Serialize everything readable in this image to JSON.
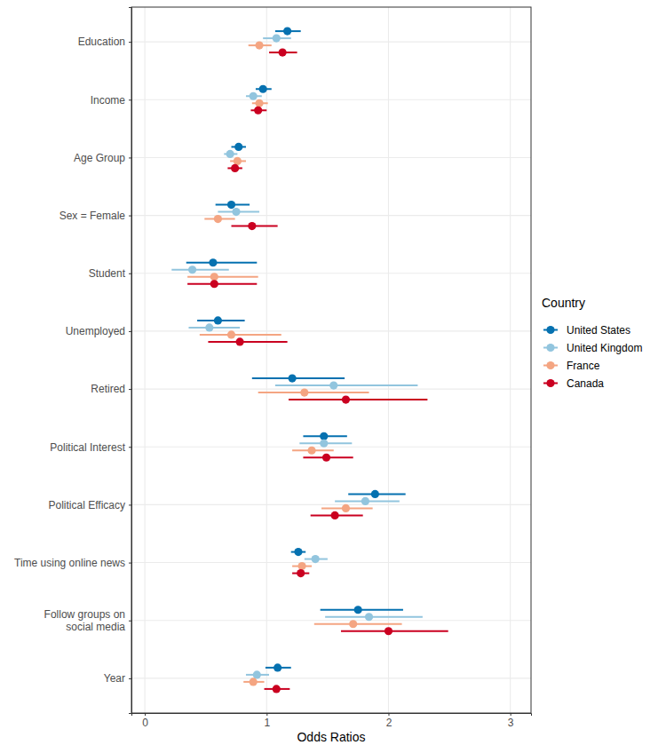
{
  "chart_data": {
    "type": "dot_errorbar",
    "orientation": "horizontal",
    "x_label": "Odds Ratios",
    "legend_title": "Country",
    "legend": "right",
    "grid": true,
    "xlim": [
      -0.11,
      3.17
    ],
    "xticks": [
      0,
      1,
      2,
      3
    ],
    "categories": [
      "Education",
      "Income",
      "Age Group",
      "Sex = Female",
      "Student",
      "Unemployed",
      "Retired",
      "Political Interest",
      "Political Efficacy",
      "Time using online news",
      "Follow groups on\nsocial media",
      "Year"
    ],
    "series": [
      {
        "name": "United States",
        "color": "#0571b0",
        "marker": "circle",
        "values": [
          1.17,
          0.97,
          0.77,
          0.71,
          0.56,
          0.6,
          1.21,
          1.47,
          1.89,
          1.26,
          1.75,
          1.09
        ],
        "lower": [
          1.07,
          0.91,
          0.71,
          0.58,
          0.34,
          0.43,
          0.88,
          1.3,
          1.67,
          1.2,
          1.44,
          0.99
        ],
        "upper": [
          1.28,
          1.04,
          0.83,
          0.86,
          0.92,
          0.82,
          1.64,
          1.66,
          2.14,
          1.32,
          2.12,
          1.2
        ]
      },
      {
        "name": "United Kingdom",
        "color": "#92c5de",
        "marker": "circle",
        "values": [
          1.08,
          0.89,
          0.7,
          0.75,
          0.39,
          0.53,
          1.55,
          1.47,
          1.81,
          1.4,
          1.84,
          0.92
        ],
        "lower": [
          0.97,
          0.83,
          0.65,
          0.6,
          0.22,
          0.36,
          1.07,
          1.27,
          1.56,
          1.31,
          1.48,
          0.83
        ],
        "upper": [
          1.2,
          0.96,
          0.76,
          0.94,
          0.69,
          0.78,
          2.24,
          1.7,
          2.09,
          1.5,
          2.28,
          1.02
        ]
      },
      {
        "name": "France",
        "color": "#f4a582",
        "marker": "circle",
        "values": [
          0.94,
          0.94,
          0.76,
          0.6,
          0.57,
          0.71,
          1.31,
          1.37,
          1.65,
          1.29,
          1.71,
          0.89
        ],
        "lower": [
          0.85,
          0.88,
          0.7,
          0.49,
          0.35,
          0.45,
          0.93,
          1.21,
          1.45,
          1.21,
          1.39,
          0.81
        ],
        "upper": [
          1.04,
          1.01,
          0.83,
          0.74,
          0.93,
          1.12,
          1.84,
          1.55,
          1.87,
          1.37,
          2.11,
          0.98
        ]
      },
      {
        "name": "Canada",
        "color": "#ca0020",
        "marker": "circle",
        "values": [
          1.13,
          0.93,
          0.74,
          0.88,
          0.57,
          0.78,
          1.65,
          1.49,
          1.56,
          1.28,
          2.0,
          1.08
        ],
        "lower": [
          1.02,
          0.87,
          0.68,
          0.71,
          0.35,
          0.52,
          1.18,
          1.3,
          1.36,
          1.21,
          1.61,
          0.98
        ],
        "upper": [
          1.25,
          1.0,
          0.8,
          1.09,
          0.92,
          1.17,
          2.32,
          1.71,
          1.79,
          1.35,
          2.49,
          1.19
        ]
      }
    ]
  }
}
